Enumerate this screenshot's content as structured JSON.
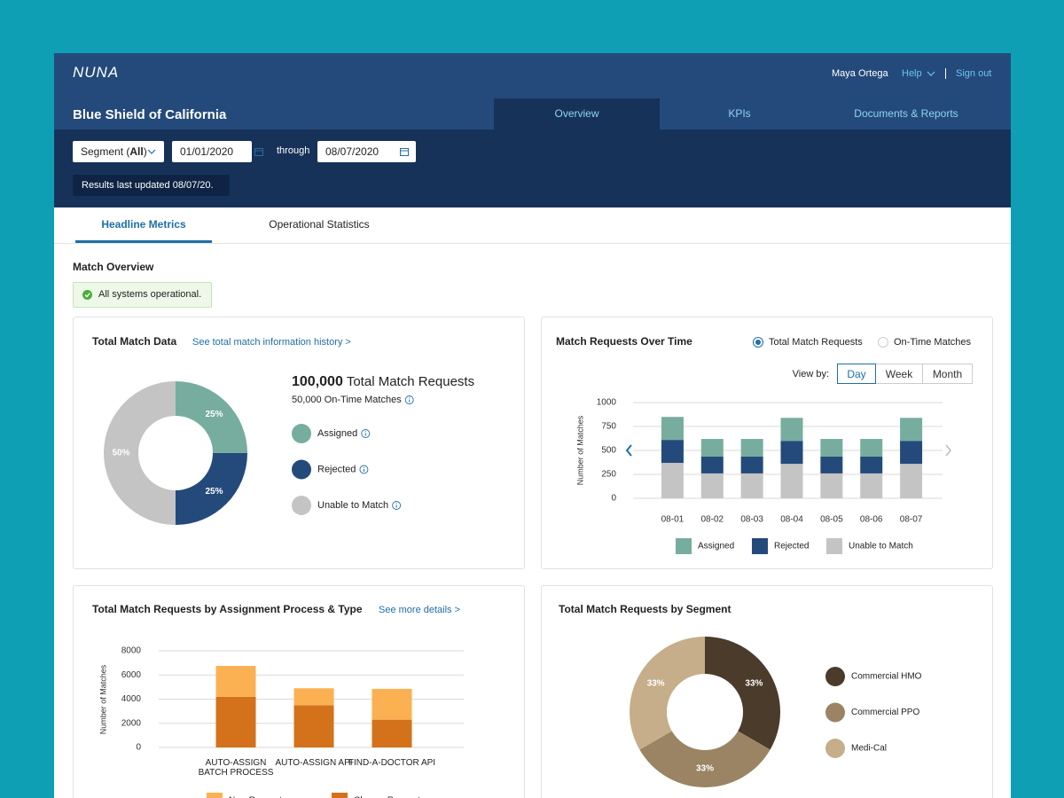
{
  "header": {
    "logo": "NUNA",
    "user": "Maya Ortega",
    "help": "Help",
    "sign_out": "Sign out",
    "organization": "Blue Shield of California",
    "nav": [
      "Overview",
      "KPIs",
      "Documents & Reports"
    ]
  },
  "filters": {
    "segment_prefix": "Segment (",
    "segment_value": "All",
    "segment_suffix": ")",
    "start_date": "01/01/2020",
    "through": "through",
    "end_date": "08/07/2020",
    "updated": "Results last updated 08/07/20."
  },
  "subtabs": [
    "Headline Metrics",
    "Operational Statistics"
  ],
  "section_title": "Match Overview",
  "status": "All systems operational.",
  "total_match_data": {
    "title": "Total Match Data",
    "link": "See total match information history >",
    "total_value": "100,000",
    "total_label": "Total Match Requests",
    "on_time": "50,000 On-Time Matches",
    "chart": {
      "type": "pie",
      "categories": [
        "Assigned",
        "Rejected",
        "Unable to Match"
      ],
      "values": [
        25,
        25,
        50
      ],
      "value_labels": [
        "25%",
        "25%",
        "50%"
      ],
      "colors": [
        "#77ad9e",
        "#244a7b",
        "#c4c4c4"
      ]
    }
  },
  "requests_over_time": {
    "title": "Match Requests Over Time",
    "radio_options": [
      "Total Match Requests",
      "On-Time Matches"
    ],
    "view_by": "View by:",
    "view_options": [
      "Day",
      "Week",
      "Month"
    ],
    "chart": {
      "type": "bar",
      "stacked": true,
      "y_label": "Number of Matches",
      "categories": [
        "08-01",
        "08-02",
        "08-03",
        "08-04",
        "08-05",
        "08-06",
        "08-07"
      ],
      "series": [
        {
          "name": "Unable to Match",
          "color": "#c4c4c4",
          "values": [
            370,
            260,
            260,
            360,
            260,
            260,
            360
          ]
        },
        {
          "name": "Rejected",
          "color": "#244a7b",
          "values": [
            240,
            175,
            175,
            240,
            175,
            175,
            240
          ]
        },
        {
          "name": "Assigned",
          "color": "#77ad9e",
          "values": [
            240,
            185,
            185,
            240,
            185,
            185,
            240
          ]
        }
      ],
      "ylim": [
        0,
        1000
      ],
      "yticks": [
        0,
        250,
        500,
        750,
        1000
      ],
      "grid": true
    }
  },
  "by_assignment": {
    "title": "Total Match Requests by Assignment Process & Type",
    "link": "See more details >",
    "chart": {
      "type": "bar",
      "stacked": true,
      "y_label": "Number of Matches",
      "categories": [
        "AUTO-ASSIGN BATCH PROCESS",
        "AUTO-ASSIGN API",
        "FIND-A-DOCTOR API"
      ],
      "series": [
        {
          "name": "Change Requests",
          "color": "#d4721b",
          "values": [
            4200,
            3500,
            2300
          ]
        },
        {
          "name": "New Requests",
          "color": "#fbb152",
          "values": [
            2550,
            1400,
            2550
          ]
        }
      ],
      "ylim": [
        0,
        8000
      ],
      "yticks": [
        0,
        2000,
        4000,
        6000,
        8000
      ],
      "grid": true
    }
  },
  "by_segment": {
    "title": "Total Match Requests by Segment",
    "chart": {
      "type": "pie",
      "categories": [
        "Commercial HMO",
        "Commercial PPO",
        "Medi-Cal"
      ],
      "values": [
        33,
        33,
        33
      ],
      "value_labels": [
        "33%",
        "33%",
        "33%"
      ],
      "colors": [
        "#4a3b2a",
        "#9a8464",
        "#c5ae89"
      ]
    }
  }
}
